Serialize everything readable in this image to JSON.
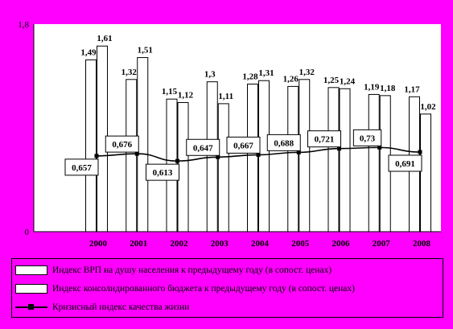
{
  "chart_data": {
    "type": "bar",
    "categories": [
      "2000",
      "2001",
      "2002",
      "2003",
      "2004",
      "2005",
      "2006",
      "2007",
      "2008"
    ],
    "ylim": [
      0,
      1.8
    ],
    "yticks": [
      "0",
      "1,8"
    ],
    "series": [
      {
        "name": "Индекс ВРП на душу населения к предыдущему году (в сопост. ценах)",
        "kind": "bar",
        "values": [
          1.49,
          1.32,
          1.15,
          1.3,
          1.28,
          1.26,
          1.25,
          1.19,
          1.17
        ],
        "labels": [
          "1,49",
          "1,32",
          "1,15",
          "1,3",
          "1,28",
          "1,26",
          "1,25",
          "1,19",
          "1,17"
        ]
      },
      {
        "name": "Индекс консолидированного бюджета к предыдущему году (в сопост. ценах)",
        "kind": "bar",
        "values": [
          1.61,
          1.51,
          1.12,
          1.11,
          1.31,
          1.32,
          1.24,
          1.18,
          1.02
        ],
        "labels": [
          "1,61",
          "1,51",
          "1,12",
          "1,11",
          "1,31",
          "1,32",
          "1,24",
          "1,18",
          "1,02"
        ]
      },
      {
        "name": "Кризисный индекс качества жизни",
        "kind": "line",
        "values": [
          0.657,
          0.676,
          0.613,
          0.647,
          0.667,
          0.688,
          0.721,
          0.73,
          0.691
        ],
        "labels": [
          "0,657",
          "0,676",
          "0,613",
          "0,647",
          "0,667",
          "0,688",
          "0,721",
          "0,73",
          "0,691"
        ]
      }
    ],
    "colors": {
      "background": "#ff00ff",
      "plot": "#ffffff",
      "bar": "#ffffff",
      "stroke": "#000000"
    },
    "grid": false,
    "legend": "bottom"
  }
}
